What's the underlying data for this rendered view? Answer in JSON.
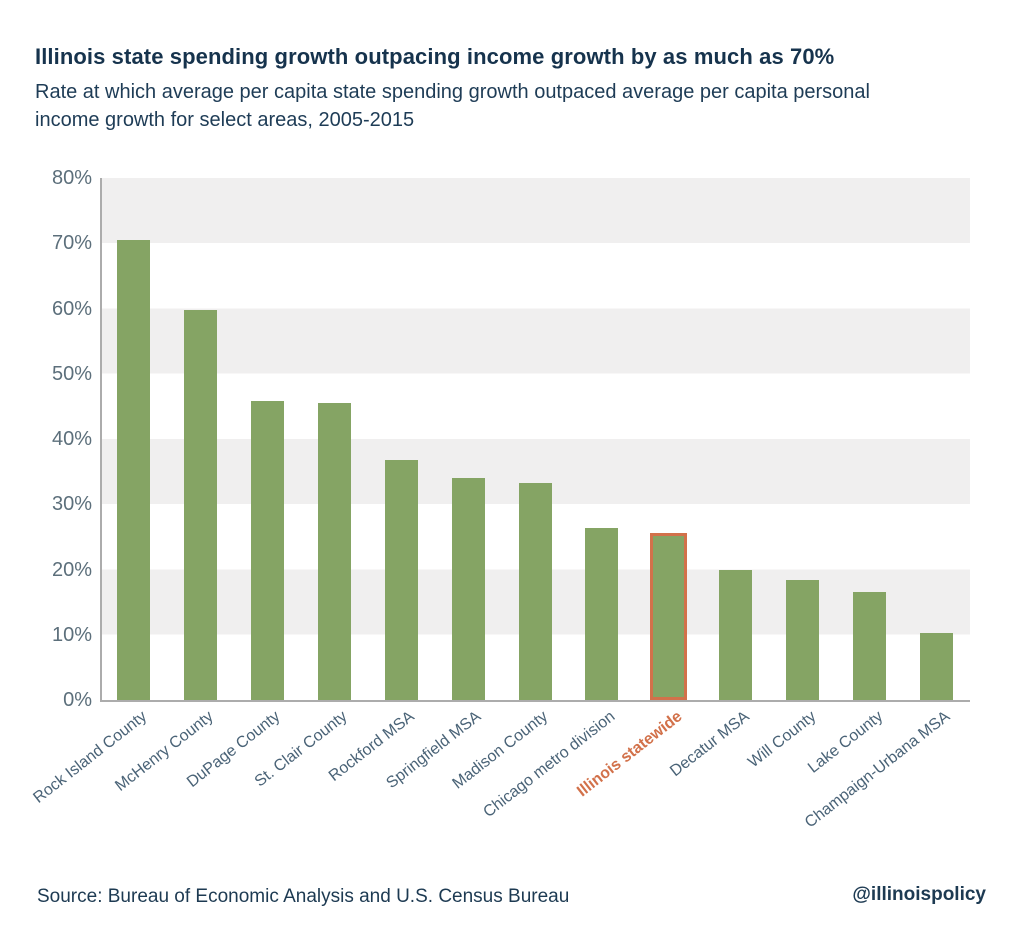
{
  "header": {
    "title": "Illinois state spending growth outpacing income growth by as much as 70%",
    "subtitle": "Rate at which average per capita state spending growth outpaced average per capita personal income growth for select areas, 2005-2015"
  },
  "footer": {
    "source": "Source: Bureau of Economic Analysis and U.S. Census Bureau",
    "handle": "@illinoispolicy"
  },
  "colors": {
    "bar_green": "#85a464",
    "highlight_orange": "#d2714a",
    "band_gray": "#f0efef",
    "axis_line": "#acacac",
    "y_tick_text": "#5c6f7b",
    "x_label_text": "#4a6377",
    "title_text": "#16334d",
    "subtitle_text": "#1e3c56",
    "footer_text": "#1d3a52"
  },
  "chart_data": {
    "type": "bar",
    "title": "Illinois state spending growth outpacing income growth by as much as 70%",
    "subtitle": "Rate at which average per capita state spending growth outpaced average per capita personal income growth for select areas, 2005-2015",
    "categories": [
      "Rock Island County",
      "McHenry County",
      "DuPage County",
      "St. Clair County",
      "Rockford MSA",
      "Springfield MSA",
      "Madison County",
      "Chicago metro division",
      "Illinois statewide",
      "Decatur MSA",
      "Will County",
      "Lake County",
      "Champaign-Urbana MSA"
    ],
    "values": [
      70.5,
      59.7,
      45.9,
      45.5,
      36.8,
      34.0,
      33.2,
      26.3,
      25.6,
      19.9,
      18.4,
      16.6,
      10.3
    ],
    "unit": "%",
    "highlight_index": 8,
    "highlight_category": "Illinois statewide",
    "y_ticks": [
      "80%",
      "70%",
      "60%",
      "50%",
      "40%",
      "30%",
      "20%",
      "10%",
      "0%"
    ],
    "ylim": [
      0,
      80
    ],
    "xlabel": "",
    "ylabel": "",
    "grid": "alternating-horizontal-bands",
    "legend": "none",
    "source": "Source: Bureau of Economic Analysis and U.S. Census Bureau",
    "attribution": "@illinoispolicy"
  }
}
